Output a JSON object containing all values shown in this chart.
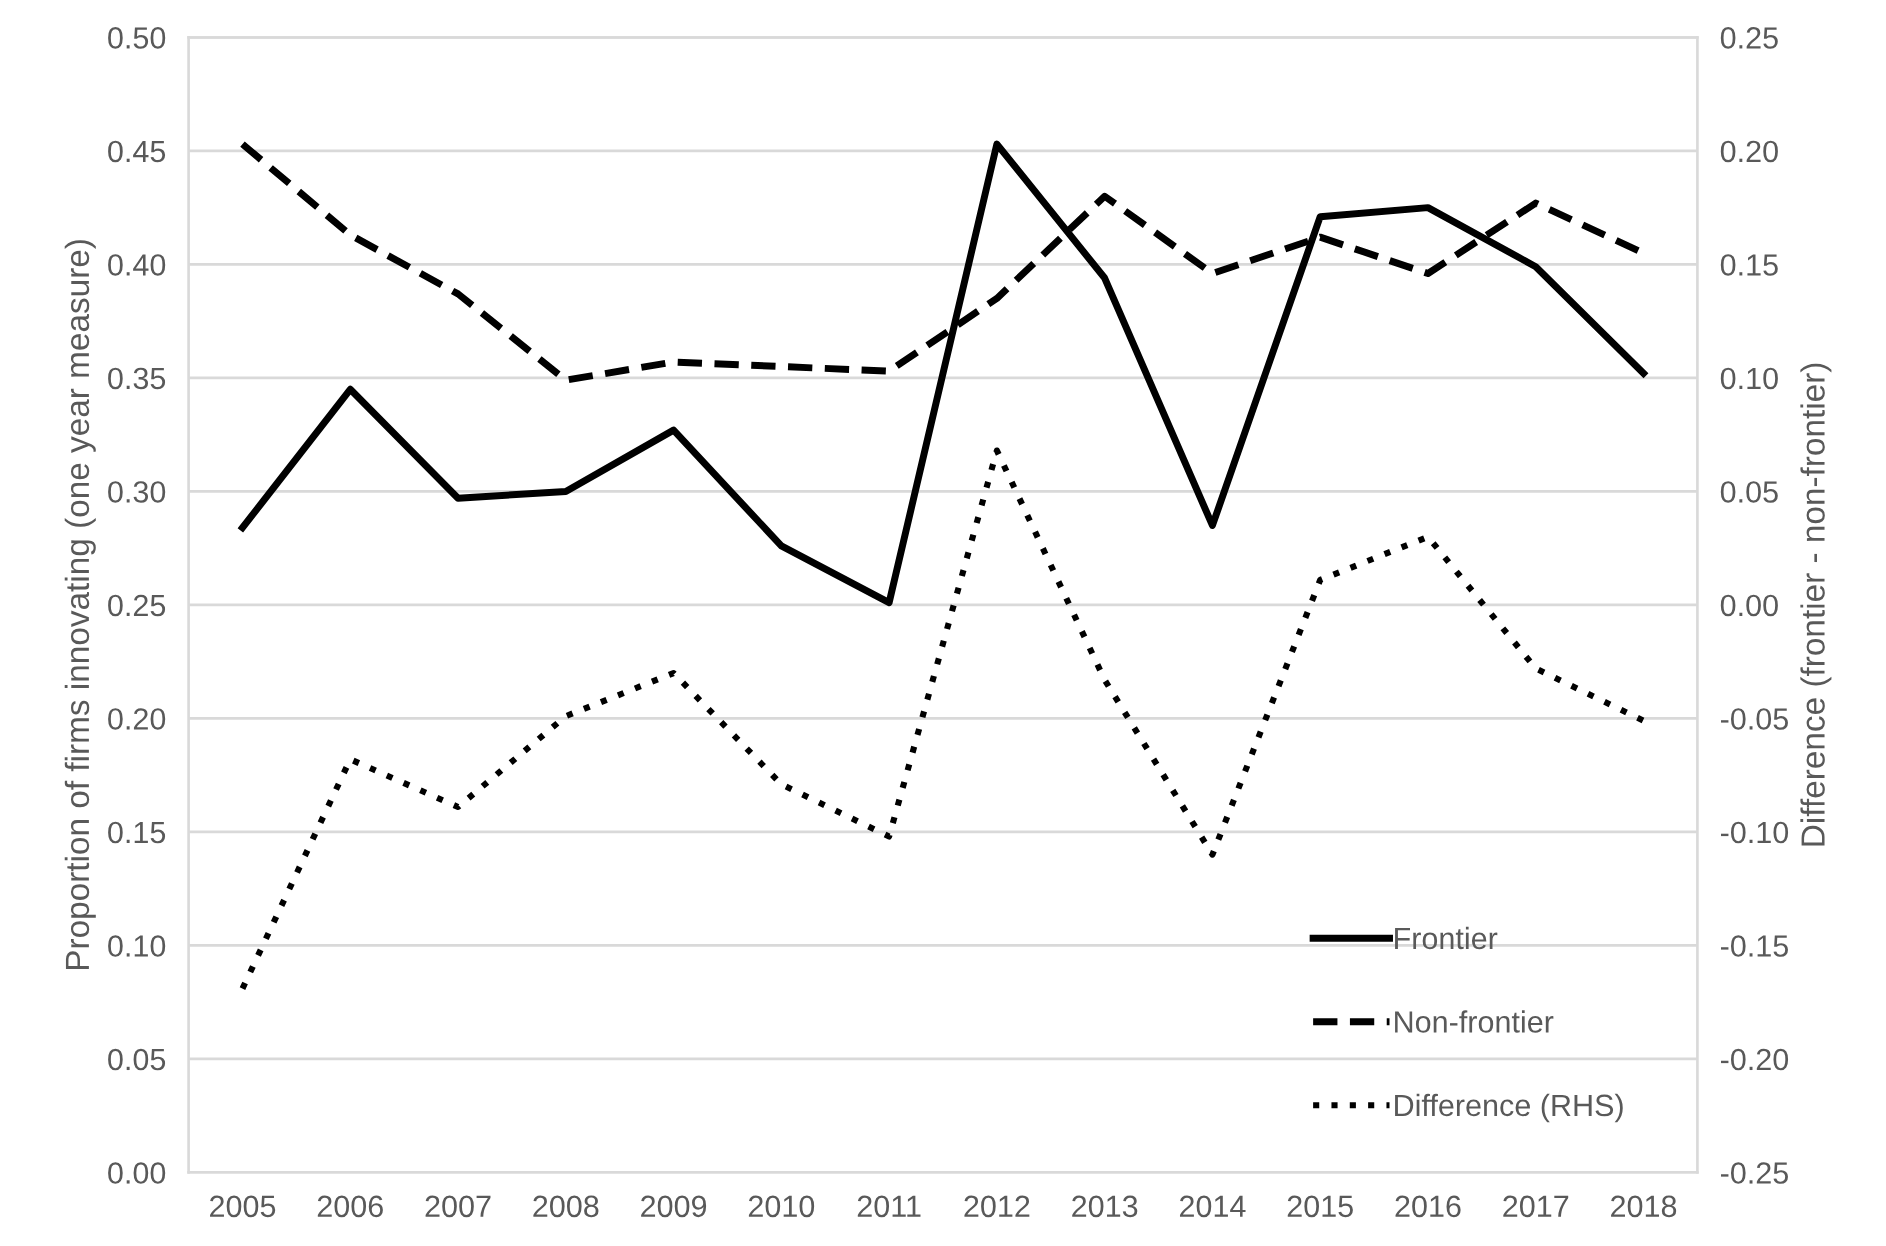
{
  "chart_data": {
    "type": "line",
    "categories": [
      "2005",
      "2006",
      "2007",
      "2008",
      "2009",
      "2010",
      "2011",
      "2012",
      "2013",
      "2014",
      "2015",
      "2016",
      "2017",
      "2018"
    ],
    "series": [
      {
        "name": "Frontier",
        "color": "#000000",
        "line_style": "solid",
        "values": [
          0.284,
          0.345,
          0.297,
          0.3,
          0.327,
          0.276,
          0.251,
          0.453,
          0.394,
          0.285,
          0.421,
          0.425,
          0.399,
          0.352
        ]
      },
      {
        "name": "Non-frontier",
        "color": "#000000",
        "line_style": "dashed",
        "values": [
          0.453,
          0.413,
          0.387,
          0.349,
          0.357,
          0.355,
          0.353,
          0.385,
          0.43,
          0.396,
          0.412,
          0.396,
          0.427,
          0.405
        ]
      },
      {
        "name": "Difference (RHS)",
        "color": "#000000",
        "line_style": "dotted",
        "axis": "y2",
        "values": [
          -0.169,
          -0.068,
          -0.089,
          -0.049,
          -0.03,
          -0.079,
          -0.102,
          0.068,
          -0.033,
          -0.11,
          0.011,
          0.03,
          -0.028,
          -0.051
        ]
      }
    ],
    "ylabel": "Proportion of firms innovating (one year measure)",
    "y2label": "Difference (frontier - non-frontier)",
    "ylim": [
      0,
      0.5
    ],
    "yticks": [
      {
        "value": 0,
        "label": "0.00"
      },
      {
        "value": 0.05,
        "label": "0.05"
      },
      {
        "value": 0.1,
        "label": "0.10"
      },
      {
        "value": 0.15,
        "label": "0.15"
      },
      {
        "value": 0.2,
        "label": "0.20"
      },
      {
        "value": 0.25,
        "label": "0.25"
      },
      {
        "value": 0.3,
        "label": "0.30"
      },
      {
        "value": 0.35,
        "label": "0.35"
      },
      {
        "value": 0.4,
        "label": "0.40"
      },
      {
        "value": 0.45,
        "label": "0.45"
      },
      {
        "value": 0.5,
        "label": "0.50"
      }
    ],
    "y2lim": [
      -0.25,
      0.25
    ],
    "y2ticks": [
      {
        "value": -0.25,
        "label": "-0.25"
      },
      {
        "value": -0.2,
        "label": "-0.20"
      },
      {
        "value": -0.15,
        "label": "-0.15"
      },
      {
        "value": -0.1,
        "label": "-0.10"
      },
      {
        "value": -0.05,
        "label": "-0.05"
      },
      {
        "value": 0,
        "label": "0.00"
      },
      {
        "value": 0.05,
        "label": "0.05"
      },
      {
        "value": 0.1,
        "label": "0.10"
      },
      {
        "value": 0.15,
        "label": "0.15"
      },
      {
        "value": 0.2,
        "label": "0.20"
      },
      {
        "value": 0.25,
        "label": "0.25"
      }
    ],
    "grid": "y",
    "legend": "bottom right",
    "marker": "none"
  }
}
